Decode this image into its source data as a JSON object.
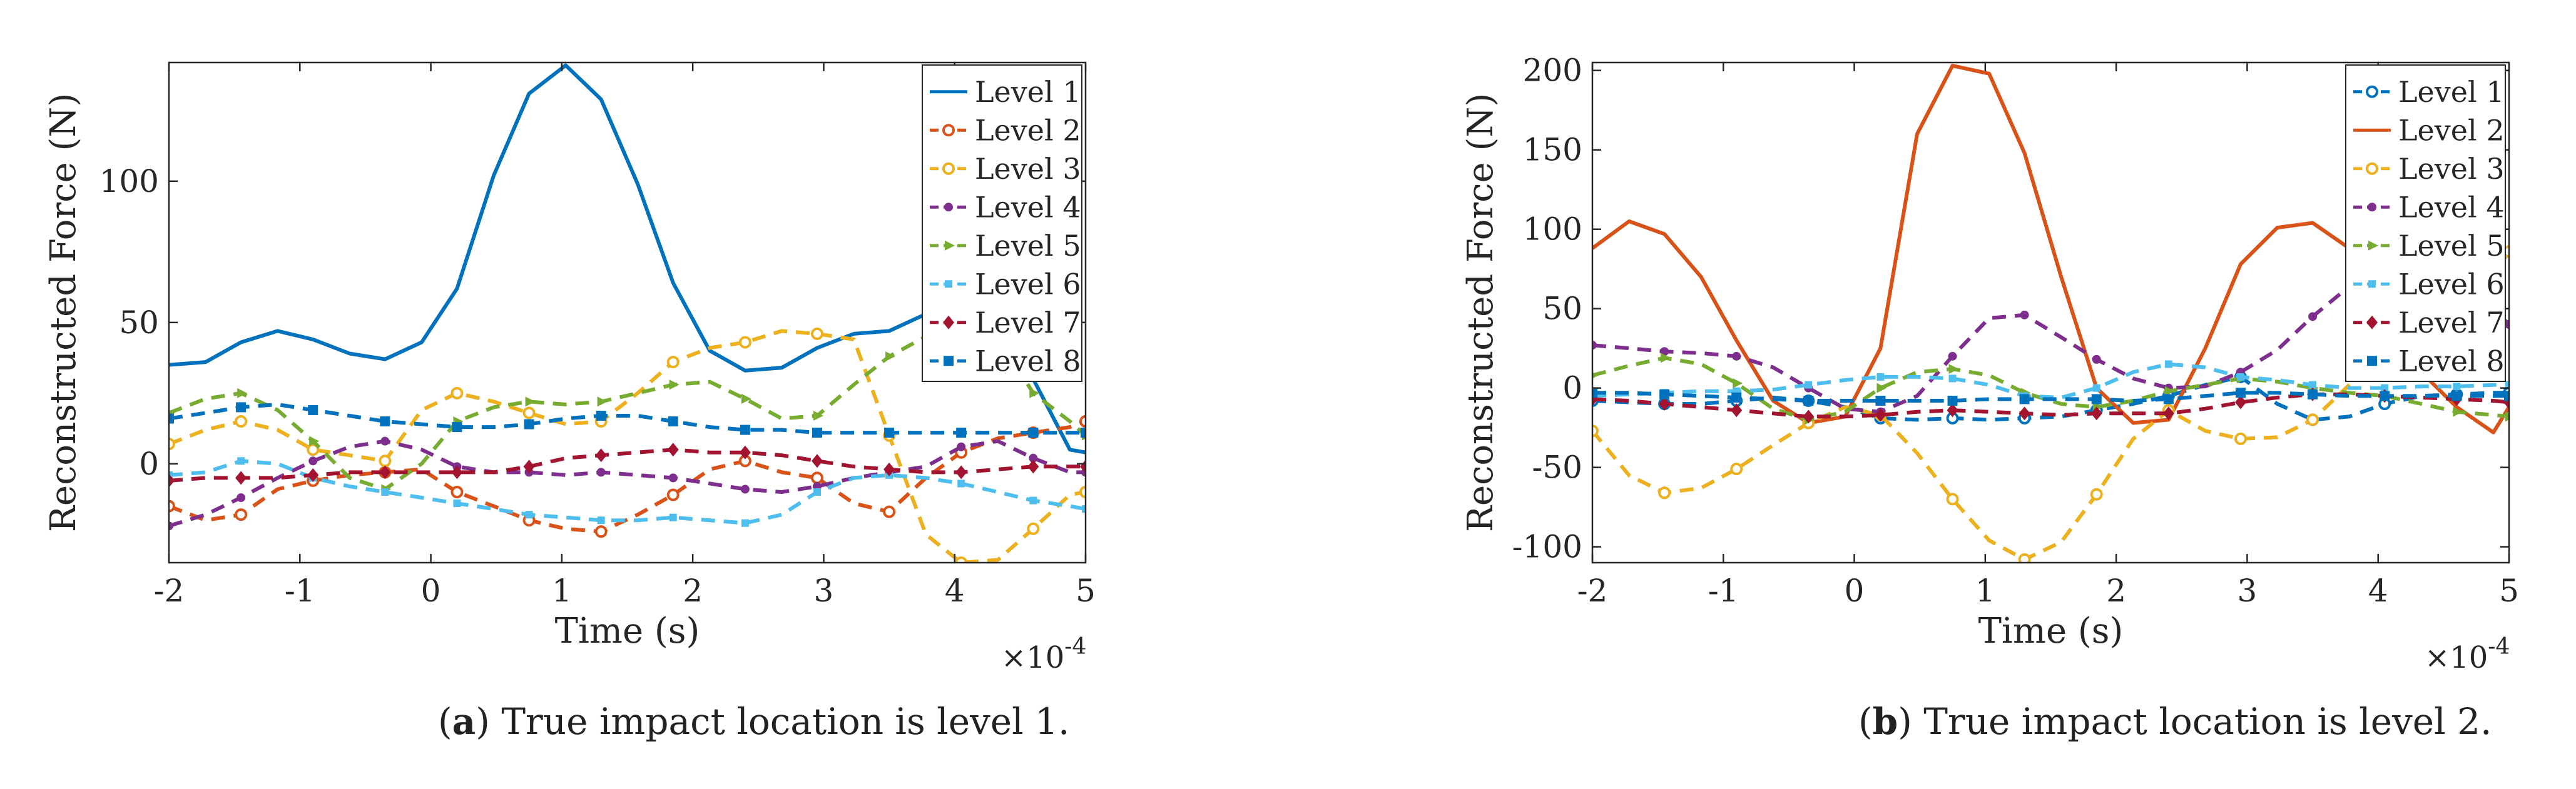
{
  "captions": [
    {
      "label": "a",
      "text": "True impact location is level 1."
    },
    {
      "label": "b",
      "text": "True impact location is level 2."
    }
  ],
  "colors": {
    "level_1": "#0072BD",
    "level_2": "#D95319",
    "level_3": "#EDB120",
    "level_4": "#7E2F8E",
    "level_5": "#77AC30",
    "level_6": "#4DBEEE",
    "level_7": "#A2142F",
    "level_8": "#0072BD"
  },
  "chart_data": [
    {
      "type": "line",
      "panel": "a",
      "xlabel": "Time (s)",
      "ylabel": "Reconstructed Force (N)",
      "x_multiplier": "×10^-4",
      "xlim": [
        -2,
        5
      ],
      "ylim": [
        -35,
        142
      ],
      "xticks": [
        -2,
        -1,
        0,
        1,
        2,
        3,
        4,
        5
      ],
      "yticks": [
        0,
        50,
        100
      ],
      "legend_position": "top-right",
      "x": [
        -2.0,
        -1.72,
        -1.45,
        -1.17,
        -0.9,
        -0.62,
        -0.35,
        -0.07,
        0.2,
        0.48,
        0.75,
        1.03,
        1.3,
        1.58,
        1.85,
        2.13,
        2.4,
        2.68,
        2.95,
        3.23,
        3.5,
        3.78,
        4.05,
        4.33,
        4.6,
        4.88,
        5.0
      ],
      "series": [
        {
          "name": "Level 1",
          "style": "solid",
          "marker": "none",
          "values": [
            35,
            36,
            43,
            47,
            44,
            39,
            37,
            43,
            62,
            102,
            131,
            141,
            129,
            99,
            64,
            40,
            33,
            34,
            41,
            46,
            47,
            53,
            57,
            55,
            30,
            5,
            4
          ]
        },
        {
          "name": "Level 2",
          "style": "dashed",
          "marker": "circle",
          "values": [
            -15,
            -20,
            -18,
            -9,
            -6,
            -4,
            -3,
            -2,
            -10,
            -15,
            -20,
            -23,
            -24,
            -18,
            -11,
            -2,
            1,
            -3,
            -5,
            -14,
            -17,
            -5,
            4,
            9,
            11,
            13,
            15
          ]
        },
        {
          "name": "Level 3",
          "style": "dashed",
          "marker": "circle",
          "values": [
            7,
            12,
            15,
            12,
            5,
            3,
            1,
            19,
            25,
            22,
            18,
            14,
            15,
            25,
            36,
            41,
            43,
            47,
            46,
            44,
            10,
            -25,
            -35,
            -34,
            -23,
            -11,
            -10
          ]
        },
        {
          "name": "Level 4",
          "style": "dashed",
          "marker": "dot",
          "values": [
            -22,
            -18,
            -12,
            -5,
            1,
            6,
            8,
            5,
            -1,
            -3,
            -3,
            -4,
            -3,
            -4,
            -5,
            -7,
            -9,
            -10,
            -8,
            -5,
            -3,
            -1,
            6,
            8,
            2,
            -3,
            -3
          ]
        },
        {
          "name": "Level 5",
          "style": "dashed",
          "marker": "triangle",
          "values": [
            18,
            23,
            25,
            19,
            8,
            -5,
            -9,
            0,
            15,
            20,
            22,
            21,
            22,
            25,
            28,
            29,
            23,
            16,
            17,
            28,
            38,
            45,
            48,
            45,
            25,
            15,
            10
          ]
        },
        {
          "name": "Level 6",
          "style": "dashed",
          "marker": "square-small",
          "values": [
            -4,
            -3,
            1,
            0,
            -5,
            -8,
            -10,
            -12,
            -14,
            -16,
            -18,
            -19,
            -20,
            -20,
            -19,
            -20,
            -21,
            -18,
            -10,
            -5,
            -4,
            -5,
            -7,
            -10,
            -13,
            -15,
            -16
          ]
        },
        {
          "name": "Level 7",
          "style": "dashed",
          "marker": "diamond",
          "values": [
            -6,
            -5,
            -5,
            -5,
            -4,
            -3,
            -3,
            -3,
            -3,
            -3,
            -1,
            2,
            3,
            4,
            5,
            4,
            4,
            3,
            1,
            -1,
            -2,
            -3,
            -3,
            -2,
            -1,
            -1,
            -1
          ]
        },
        {
          "name": "Level 8",
          "style": "dashed",
          "marker": "square",
          "values": [
            16,
            18,
            20,
            21,
            19,
            17,
            15,
            14,
            13,
            13,
            14,
            16,
            17,
            17,
            15,
            13,
            12,
            12,
            11,
            11,
            11,
            11,
            11,
            11,
            11,
            11,
            11
          ]
        }
      ]
    },
    {
      "type": "line",
      "panel": "b",
      "xlabel": "Time (s)",
      "ylabel": "Reconstructed Force (N)",
      "x_multiplier": "×10^-4",
      "xlim": [
        -2,
        5
      ],
      "ylim": [
        -110,
        205
      ],
      "xticks": [
        -2,
        -1,
        0,
        1,
        2,
        3,
        4,
        5
      ],
      "yticks": [
        -100,
        -50,
        0,
        50,
        100,
        150,
        200
      ],
      "legend_position": "top-right",
      "x": [
        -2.0,
        -1.72,
        -1.45,
        -1.17,
        -0.9,
        -0.62,
        -0.35,
        -0.07,
        0.2,
        0.48,
        0.75,
        1.03,
        1.3,
        1.58,
        1.85,
        2.13,
        2.4,
        2.68,
        2.95,
        3.23,
        3.5,
        3.78,
        4.05,
        4.33,
        4.6,
        4.88,
        5.0
      ],
      "series": [
        {
          "name": "Level 1",
          "style": "dashed",
          "marker": "circle",
          "values": [
            -8,
            -9,
            -10,
            -10,
            -8,
            -6,
            -8,
            -12,
            -19,
            -20,
            -19,
            -20,
            -19,
            -18,
            -14,
            -10,
            -5,
            2,
            7,
            -10,
            -20,
            -18,
            -10,
            -5,
            -4,
            -3,
            -3
          ]
        },
        {
          "name": "Level 2",
          "style": "solid",
          "marker": "none",
          "values": [
            88,
            105,
            97,
            70,
            30,
            -8,
            -22,
            -18,
            25,
            160,
            203,
            198,
            148,
            70,
            0,
            -22,
            -20,
            25,
            78,
            101,
            104,
            88,
            50,
            10,
            -12,
            -28,
            -12
          ]
        },
        {
          "name": "Level 3",
          "style": "dashed",
          "marker": "circle",
          "values": [
            -27,
            -55,
            -66,
            -63,
            -51,
            -36,
            -22,
            -12,
            -17,
            -41,
            -70,
            -96,
            -108,
            -97,
            -67,
            -32,
            -14,
            -27,
            -32,
            -31,
            -20,
            2,
            21,
            20,
            40,
            70,
            86
          ]
        },
        {
          "name": "Level 4",
          "style": "dashed",
          "marker": "dot",
          "values": [
            27,
            25,
            23,
            22,
            20,
            13,
            0,
            -13,
            -15,
            -5,
            20,
            44,
            46,
            32,
            18,
            6,
            0,
            1,
            10,
            24,
            45,
            64,
            76,
            78,
            70,
            50,
            40
          ]
        },
        {
          "name": "Level 5",
          "style": "dashed",
          "marker": "triangle",
          "values": [
            8,
            14,
            19,
            15,
            3,
            -13,
            -20,
            -15,
            0,
            10,
            12,
            8,
            -3,
            -10,
            -12,
            -8,
            -2,
            2,
            6,
            4,
            0,
            -3,
            -5,
            -10,
            -15,
            -17,
            -18
          ]
        },
        {
          "name": "Level 6",
          "style": "dashed",
          "marker": "square-small",
          "values": [
            -5,
            -4,
            -3,
            -2,
            -2,
            -1,
            2,
            5,
            7,
            7,
            6,
            2,
            -5,
            -6,
            0,
            10,
            15,
            13,
            7,
            5,
            2,
            0,
            0,
            1,
            1,
            2,
            2
          ]
        },
        {
          "name": "Level 7",
          "style": "dashed",
          "marker": "diamond",
          "values": [
            -7,
            -8,
            -10,
            -12,
            -14,
            -16,
            -18,
            -18,
            -17,
            -15,
            -14,
            -15,
            -16,
            -17,
            -16,
            -16,
            -16,
            -13,
            -9,
            -6,
            -4,
            -4,
            -5,
            -6,
            -7,
            -8,
            -9
          ]
        },
        {
          "name": "Level 8",
          "style": "dashed",
          "marker": "square",
          "values": [
            -3,
            -3,
            -4,
            -5,
            -6,
            -7,
            -8,
            -8,
            -8,
            -8,
            -8,
            -7,
            -7,
            -7,
            -7,
            -8,
            -7,
            -5,
            -3,
            -3,
            -4,
            -5,
            -5,
            -5,
            -5,
            -5,
            -5
          ]
        }
      ]
    }
  ]
}
